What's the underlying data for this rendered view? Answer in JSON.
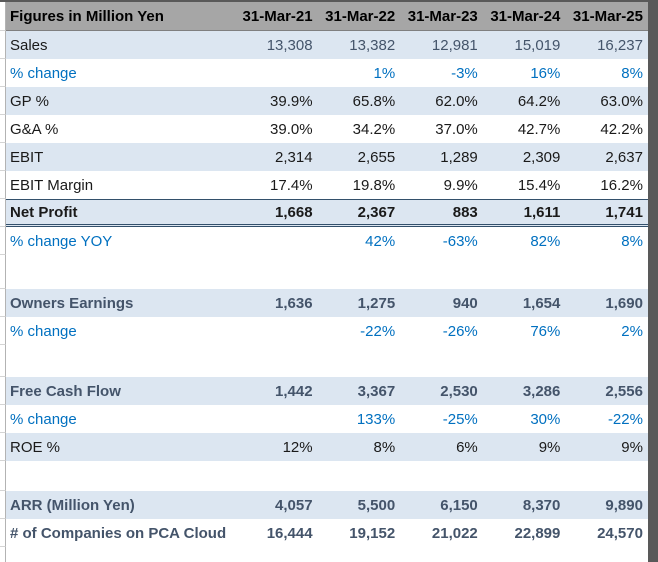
{
  "header": {
    "label": "Figures in Million Yen",
    "columns": [
      "31-Mar-21",
      "31-Mar-22",
      "31-Mar-23",
      "31-Mar-24",
      "31-Mar-25"
    ]
  },
  "rows": [
    {
      "label": "Sales",
      "values": [
        "13,308",
        "13,382",
        "12,981",
        "15,019",
        "16,237"
      ],
      "bg": "blue",
      "label_color": "black",
      "value_color": "slate",
      "bold": false
    },
    {
      "label": "% change",
      "values": [
        "",
        "1%",
        "-3%",
        "16%",
        "8%"
      ],
      "bg": "white",
      "label_color": "blue",
      "value_color": "blue",
      "bold": false
    },
    {
      "label": "GP %",
      "values": [
        "39.9%",
        "65.8%",
        "62.0%",
        "64.2%",
        "63.0%"
      ],
      "bg": "blue",
      "label_color": "black",
      "value_color": "black",
      "bold": false
    },
    {
      "label": "G&A %",
      "values": [
        "39.0%",
        "34.2%",
        "37.0%",
        "42.7%",
        "42.2%"
      ],
      "bg": "white",
      "label_color": "black",
      "value_color": "black",
      "bold": false
    },
    {
      "label": "EBIT",
      "values": [
        "2,314",
        "2,655",
        "1,289",
        "2,309",
        "2,637"
      ],
      "bg": "blue",
      "label_color": "black",
      "value_color": "black",
      "bold": false
    },
    {
      "label": "EBIT Margin",
      "values": [
        "17.4%",
        "19.8%",
        "9.9%",
        "15.4%",
        "16.2%"
      ],
      "bg": "white",
      "label_color": "black",
      "value_color": "black",
      "bold": false
    },
    {
      "label": "Net Profit",
      "values": [
        "1,668",
        "2,367",
        "883",
        "1,611",
        "1,741"
      ],
      "bg": "blue",
      "label_color": "black",
      "value_color": "black",
      "bold": true,
      "total_border": true
    },
    {
      "label": "% change YOY",
      "values": [
        "",
        "42%",
        "-63%",
        "82%",
        "8%"
      ],
      "bg": "white",
      "label_color": "blue",
      "value_color": "blue",
      "bold": false
    },
    {
      "spacer": true,
      "height": 34
    },
    {
      "label": "Owners Earnings",
      "values": [
        "1,636",
        "1,275",
        "940",
        "1,654",
        "1,690"
      ],
      "bg": "blue",
      "label_color": "slate",
      "value_color": "slate",
      "bold": true
    },
    {
      "label": "% change",
      "values": [
        "",
        "-22%",
        "-26%",
        "76%",
        "2%"
      ],
      "bg": "white",
      "label_color": "blue",
      "value_color": "blue",
      "bold": false
    },
    {
      "spacer": true,
      "height": 32
    },
    {
      "label": "Free Cash Flow",
      "values": [
        "1,442",
        "3,367",
        "2,530",
        "3,286",
        "2,556"
      ],
      "bg": "blue",
      "label_color": "slate",
      "value_color": "slate",
      "bold": true
    },
    {
      "label": "% change",
      "values": [
        "",
        "133%",
        "-25%",
        "30%",
        "-22%"
      ],
      "bg": "white",
      "label_color": "blue",
      "value_color": "blue",
      "bold": false
    },
    {
      "label": "ROE %",
      "values": [
        "12%",
        "8%",
        "6%",
        "9%",
        "9%"
      ],
      "bg": "blue",
      "label_color": "black",
      "value_color": "black",
      "bold": false
    },
    {
      "spacer": true,
      "height": 30
    },
    {
      "label": "ARR (Million Yen)",
      "values": [
        "4,057",
        "5,500",
        "6,150",
        "8,370",
        "9,890"
      ],
      "bg": "blue",
      "label_color": "slate",
      "value_color": "slate",
      "bold": true
    },
    {
      "label": "# of Companies on PCA Cloud",
      "values": [
        "16,444",
        "19,152",
        "21,022",
        "22,899",
        "24,570"
      ],
      "bg": "white",
      "label_color": "slate",
      "value_color": "slate",
      "bold": true
    }
  ],
  "colors": {
    "header_bg": "#a6a6a6",
    "band_blue": "#dce6f1",
    "text_blue": "#0070c0",
    "text_slate": "#44546a",
    "text_black": "#1a1a1a",
    "edge_strip": "#595959",
    "total_border": "#33506b"
  }
}
